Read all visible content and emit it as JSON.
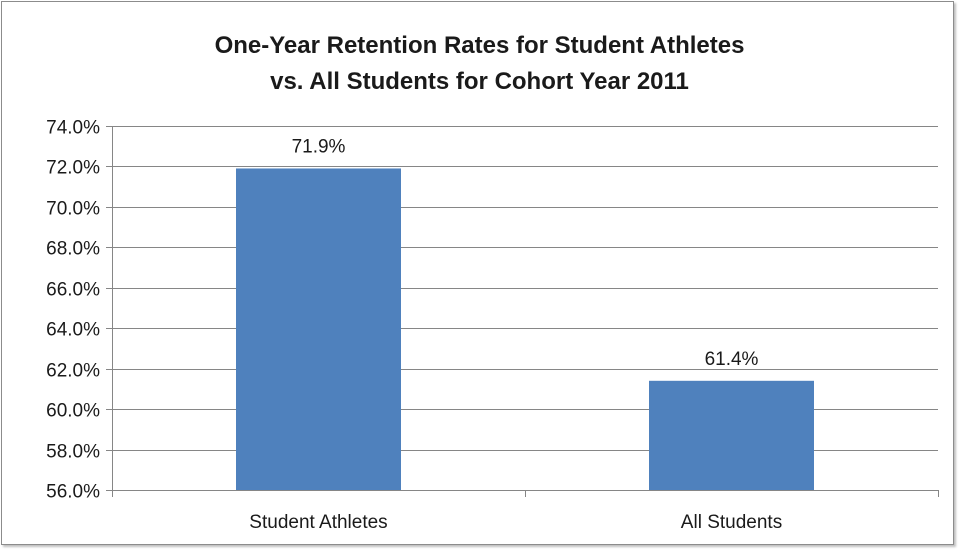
{
  "chart_data": {
    "type": "bar",
    "title_lines": [
      "One-Year Retention Rates for Student Athletes",
      "vs. All Students for Cohort Year 2011"
    ],
    "categories": [
      "Student Athletes",
      "All Students"
    ],
    "values": [
      71.9,
      61.4
    ],
    "data_labels": [
      "71.9%",
      "61.4%"
    ],
    "ylim": [
      56.0,
      74.0
    ],
    "yticks": [
      56.0,
      58.0,
      60.0,
      62.0,
      64.0,
      66.0,
      68.0,
      70.0,
      72.0,
      74.0
    ],
    "ytick_labels": [
      "56.0%",
      "58.0%",
      "60.0%",
      "62.0%",
      "64.0%",
      "66.0%",
      "68.0%",
      "70.0%",
      "72.0%",
      "74.0%"
    ],
    "grid": true,
    "legend": "none",
    "bar_color": "#4f81bd",
    "grid_color": "#868686"
  }
}
